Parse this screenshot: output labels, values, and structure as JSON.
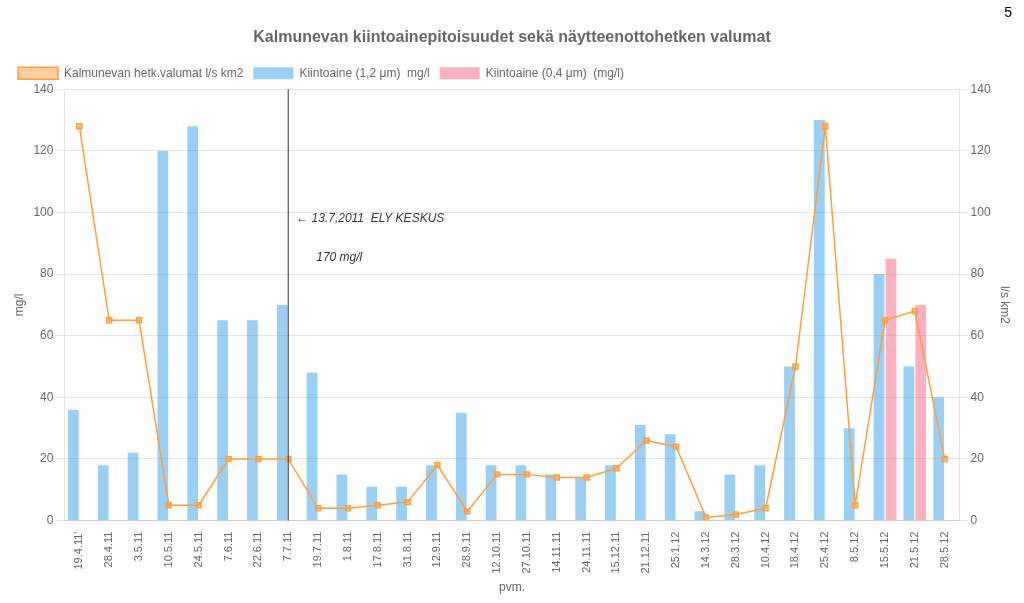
{
  "chart_data": {
    "type": "bar",
    "title": "Kalmunevan kiintoainepitoisuudet sekä näytteenottohetken valumat",
    "xlabel": "pvm.",
    "ylabel": "mg/l",
    "y2label": "l/s km2",
    "page_number": "5",
    "annotations": [
      "← 13.7,2011  ELY KESKUS",
      "      170 mg/l"
    ],
    "vlines": [
      "7.7.11"
    ],
    "categories": [
      "19.4.11'",
      "28.4.11",
      "3.5.11",
      "10.5.11",
      "24.5.11",
      "7.6.11",
      "22.6.11",
      "7.7.11",
      "19.7.11",
      "1.8.11",
      "17.8.11",
      "31.8.11",
      "12.9.11",
      "28.9.11",
      "12.10.11",
      "27.10.11",
      "14.11.11",
      "24.11.11",
      "15.12.11",
      "21.12.11",
      "25.1.12",
      "14.3.12",
      "28.3.12",
      "10.4.12",
      "18.4.12",
      "25.4.12",
      "8.5.12",
      "15.5.12",
      "21.5.12",
      "28.5.12"
    ],
    "series": [
      {
        "name": "Kiintoaine (1,2 μm)  mg/l",
        "type": "bar",
        "values": [
          36,
          18,
          22,
          120,
          128,
          65,
          65,
          70,
          48,
          15,
          11,
          11,
          18,
          35,
          18,
          18,
          15,
          14,
          18,
          31,
          28,
          3,
          15,
          18,
          50,
          130,
          30,
          80,
          50,
          40
        ]
      },
      {
        "name": "Kiintoaine (0,4 μm)  (mg/l)",
        "type": "bar",
        "values": [
          0,
          0,
          0,
          0,
          0,
          0,
          0,
          0,
          0,
          0,
          0,
          0,
          0,
          0,
          0,
          0,
          0,
          0,
          0,
          0,
          0,
          0,
          0,
          0,
          0,
          0,
          0,
          85,
          70,
          0
        ]
      },
      {
        "name": "Kalmunevan hetk.valumat l/s km2",
        "type": "line",
        "marker": "square",
        "values": [
          128,
          65,
          65,
          5,
          5,
          20,
          20,
          20,
          4,
          4,
          5,
          6,
          18,
          3,
          15,
          15,
          14,
          14,
          17,
          26,
          24,
          1,
          2,
          4,
          50,
          128,
          5,
          65,
          68,
          20
        ]
      }
    ],
    "ylim": [
      0,
      140
    ],
    "yticks": [
      0,
      20,
      40,
      60,
      80,
      100,
      120,
      140
    ],
    "y2lim": [
      0,
      140
    ],
    "y2ticks": [
      0,
      20,
      40,
      60,
      80,
      100,
      120,
      140
    ],
    "grid": true,
    "legend": "top"
  }
}
